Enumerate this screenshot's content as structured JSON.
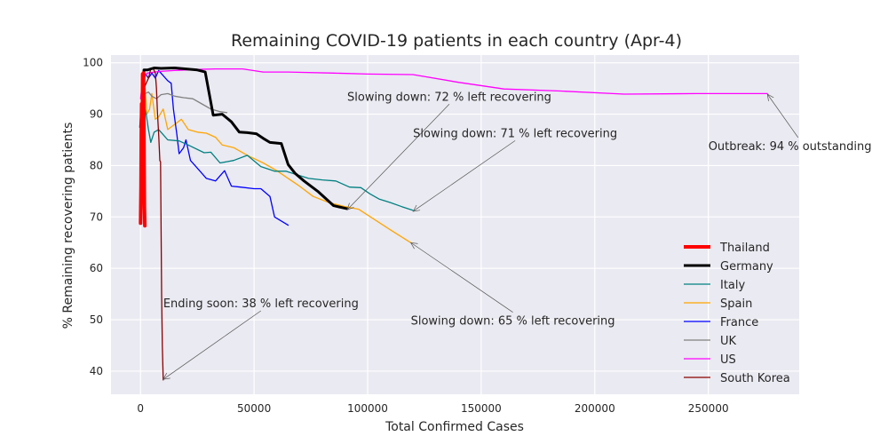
{
  "chart_data": {
    "type": "line",
    "title": "Remaining COVID-19 patients in each country (Apr-4)",
    "xlabel": "Total Confirmed Cases",
    "ylabel": "% Remaining recovering patients",
    "xlim": [
      -13000,
      290000
    ],
    "ylim": [
      35.5,
      101.5
    ],
    "xticks": [
      0,
      50000,
      100000,
      150000,
      200000,
      250000
    ],
    "xtick_labels": [
      "0",
      "50000",
      "100000",
      "150000",
      "200000",
      "250000"
    ],
    "yticks": [
      40,
      50,
      60,
      70,
      80,
      90,
      100
    ],
    "ytick_labels": [
      "40",
      "50",
      "60",
      "70",
      "80",
      "90",
      "100"
    ],
    "grid": true,
    "legend_position": "lower-right",
    "colors": {
      "plot_background": "#eaeaf2",
      "grid": "#ffffff",
      "text": "#262626",
      "arrow": "#555555"
    },
    "series": [
      {
        "name": "Thailand",
        "color": "#ff0000",
        "width": 4,
        "points": [
          [
            0,
            68.8
          ],
          [
            200,
            76
          ],
          [
            350,
            86
          ],
          [
            500,
            92
          ],
          [
            700,
            81
          ],
          [
            900,
            97.8
          ],
          [
            1100,
            90
          ],
          [
            1300,
            98
          ],
          [
            1500,
            86
          ],
          [
            1700,
            72
          ],
          [
            1900,
            68.3
          ]
        ]
      },
      {
        "name": "Germany",
        "color": "#000000",
        "width": 3,
        "points": [
          [
            0,
            87.5
          ],
          [
            800,
            93
          ],
          [
            1500,
            98.6
          ],
          [
            3000,
            98.6
          ],
          [
            6000,
            99
          ],
          [
            9000,
            98.9
          ],
          [
            15000,
            99
          ],
          [
            20000,
            98.8
          ],
          [
            25000,
            98.6
          ],
          [
            28500,
            98.2
          ],
          [
            32000,
            89.8
          ],
          [
            36000,
            90
          ],
          [
            40000,
            88.5
          ],
          [
            43500,
            86.5
          ],
          [
            47000,
            86.4
          ],
          [
            51000,
            86.2
          ],
          [
            54000,
            85.3
          ],
          [
            57000,
            84.5
          ],
          [
            62000,
            84.3
          ],
          [
            65000,
            80.2
          ],
          [
            68000,
            78.5
          ],
          [
            72000,
            77
          ],
          [
            78000,
            75
          ],
          [
            85000,
            72.2
          ],
          [
            91000,
            71.6
          ]
        ]
      },
      {
        "name": "Italy",
        "color": "#008080",
        "width": 1.3,
        "points": [
          [
            0,
            88
          ],
          [
            1500,
            92
          ],
          [
            2500,
            90
          ],
          [
            3500,
            87
          ],
          [
            4500,
            84.5
          ],
          [
            6000,
            86.5
          ],
          [
            8000,
            87
          ],
          [
            10000,
            86
          ],
          [
            12000,
            85
          ],
          [
            17000,
            84.8
          ],
          [
            21000,
            84
          ],
          [
            28000,
            82.5
          ],
          [
            31000,
            82.6
          ],
          [
            35000,
            80.5
          ],
          [
            41000,
            81
          ],
          [
            47000,
            82
          ],
          [
            53000,
            79.8
          ],
          [
            59000,
            78.9
          ],
          [
            64000,
            78.9
          ],
          [
            69000,
            78.2
          ],
          [
            74000,
            77.5
          ],
          [
            80000,
            77.2
          ],
          [
            86000,
            77
          ],
          [
            92000,
            75.8
          ],
          [
            97000,
            75.7
          ],
          [
            101000,
            74.5
          ],
          [
            105000,
            73.5
          ],
          [
            110000,
            72.8
          ],
          [
            115000,
            72
          ],
          [
            119800,
            71.3
          ]
        ]
      },
      {
        "name": "Spain",
        "color": "#ffa500",
        "width": 1.3,
        "points": [
          [
            0,
            88
          ],
          [
            1000,
            92
          ],
          [
            2000,
            95
          ],
          [
            2800,
            90
          ],
          [
            4000,
            91
          ],
          [
            5000,
            94
          ],
          [
            6500,
            89
          ],
          [
            8000,
            89.5
          ],
          [
            10000,
            91
          ],
          [
            12000,
            87
          ],
          [
            15000,
            88
          ],
          [
            18000,
            89
          ],
          [
            21000,
            87
          ],
          [
            25000,
            86.5
          ],
          [
            29000,
            86.3
          ],
          [
            33000,
            85.5
          ],
          [
            36000,
            84
          ],
          [
            41000,
            83.5
          ],
          [
            47000,
            82
          ],
          [
            54000,
            80.5
          ],
          [
            60000,
            79
          ],
          [
            65000,
            77.5
          ],
          [
            70000,
            76
          ],
          [
            76000,
            74
          ],
          [
            83000,
            72.8
          ],
          [
            90000,
            72
          ],
          [
            96000,
            71.5
          ],
          [
            103000,
            69.5
          ],
          [
            110000,
            67.5
          ],
          [
            119000,
            65
          ]
        ]
      },
      {
        "name": "France",
        "color": "#0000ff",
        "width": 1.3,
        "points": [
          [
            0,
            90
          ],
          [
            1200,
            96
          ],
          [
            2200,
            97.8
          ],
          [
            3500,
            97
          ],
          [
            5000,
            98
          ],
          [
            6500,
            97
          ],
          [
            8000,
            98.5
          ],
          [
            10000,
            97.5
          ],
          [
            12000,
            96.5
          ],
          [
            13500,
            96
          ],
          [
            14500,
            91
          ],
          [
            16000,
            86
          ],
          [
            17000,
            82.3
          ],
          [
            19000,
            83.5
          ],
          [
            20000,
            85
          ],
          [
            22000,
            81
          ],
          [
            25000,
            79.5
          ],
          [
            29000,
            77.5
          ],
          [
            33000,
            77
          ],
          [
            37000,
            79
          ],
          [
            40000,
            76
          ],
          [
            44000,
            75.8
          ],
          [
            50000,
            75.5
          ],
          [
            53000,
            75.5
          ],
          [
            57000,
            74
          ],
          [
            59000,
            70
          ],
          [
            65000,
            68.4
          ]
        ]
      },
      {
        "name": "UK",
        "color": "#808080",
        "width": 1.3,
        "points": [
          [
            0,
            88
          ],
          [
            1000,
            92
          ],
          [
            2000,
            94
          ],
          [
            3500,
            94.3
          ],
          [
            5000,
            93.5
          ],
          [
            7000,
            93
          ],
          [
            9000,
            93.8
          ],
          [
            12000,
            94
          ],
          [
            15000,
            93.5
          ],
          [
            19000,
            93.2
          ],
          [
            23000,
            93
          ],
          [
            27000,
            92
          ],
          [
            31000,
            91
          ],
          [
            35000,
            90.5
          ],
          [
            38000,
            90.3
          ]
        ]
      },
      {
        "name": "US",
        "color": "#ff00ff",
        "width": 1.3,
        "points": [
          [
            0,
            93
          ],
          [
            1000,
            97
          ],
          [
            3000,
            98
          ],
          [
            8000,
            98.3
          ],
          [
            15000,
            98.5
          ],
          [
            25000,
            98.7
          ],
          [
            33000,
            98.8
          ],
          [
            45000,
            98.8
          ],
          [
            54000,
            98.2
          ],
          [
            65000,
            98.2
          ],
          [
            85000,
            98
          ],
          [
            100000,
            97.8
          ],
          [
            120000,
            97.7
          ],
          [
            140000,
            96.2
          ],
          [
            160000,
            94.9
          ],
          [
            185000,
            94.5
          ],
          [
            213000,
            93.9
          ],
          [
            245000,
            94
          ],
          [
            276000,
            94
          ]
        ]
      },
      {
        "name": "South Korea",
        "color": "#8b0000",
        "width": 1.3,
        "points": [
          [
            0,
            88
          ],
          [
            800,
            93
          ],
          [
            1500,
            95
          ],
          [
            2500,
            96
          ],
          [
            3500,
            97
          ],
          [
            4500,
            98.8
          ],
          [
            5500,
            99
          ],
          [
            6500,
            98
          ],
          [
            7000,
            95
          ],
          [
            7500,
            90
          ],
          [
            8000,
            86
          ],
          [
            8500,
            81
          ],
          [
            8800,
            80.7
          ],
          [
            9000,
            70
          ],
          [
            9300,
            55
          ],
          [
            9600,
            45
          ],
          [
            10000,
            38.3
          ]
        ]
      }
    ],
    "annotations": [
      {
        "text": "Slowing down: 72 % left recovering",
        "tx": 91000,
        "ty": 93.5,
        "ax": 91000,
        "ay": 71.4
      },
      {
        "text": "Slowing down: 71 % left recovering",
        "tx": 120000,
        "ty": 86.4,
        "ax": 120000,
        "ay": 71.1
      },
      {
        "text": "Outbreak: 94 % outstanding",
        "tx": 250000,
        "ty": 83.9,
        "ax": 276000,
        "ay": 93.9
      },
      {
        "text": "Ending soon: 38 % left recovering",
        "tx": 10000,
        "ty": 53.3,
        "ax": 10000,
        "ay": 38.4
      },
      {
        "text": "Slowing down: 65 % left recovering",
        "tx": 119000,
        "ty": 49.9,
        "ax": 119000,
        "ay": 65
      }
    ]
  }
}
